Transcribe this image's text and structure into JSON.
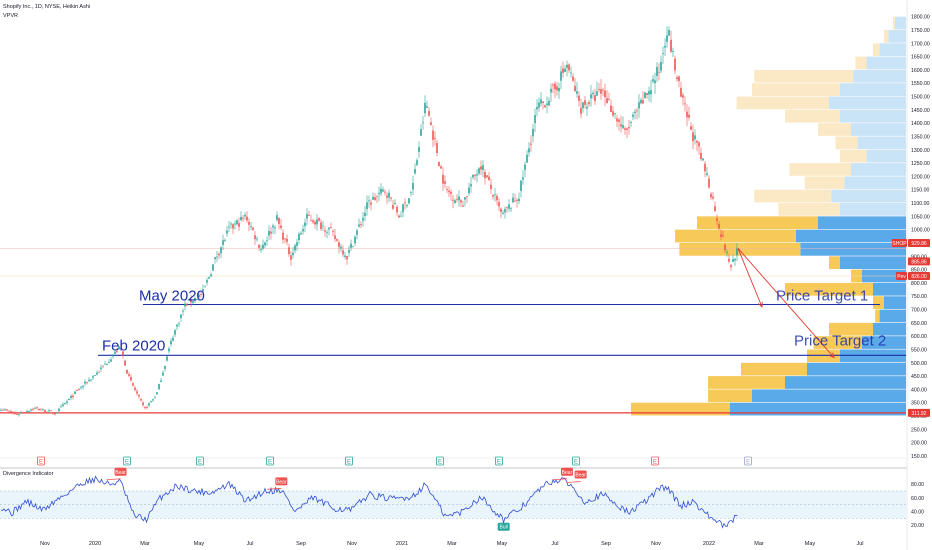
{
  "header": {
    "title": "Shopify Inc., 1D, NYSE, Heikin Ashi",
    "indicator": "VPVR"
  },
  "rsi_panel": {
    "name": "Divergence Indicator"
  },
  "colors": {
    "up": "#26a69a",
    "down": "#ef5350",
    "trendline": "#1c2fa8",
    "support": "#e53935",
    "vp_up": "#5aa9e8",
    "vp_down": "#f6c959",
    "vp_up_light": "#c9e3f7",
    "vp_down_light": "#fbe9c6",
    "rsi": "#2f4fd0",
    "rsi_band": "#dcecf8"
  },
  "chart_data": [
    {
      "type": "candlestick",
      "title": "Shopify Inc., 1D, NYSE, Heikin Ashi",
      "x_axis": {
        "type": "date",
        "ticks": [
          "Nov",
          "2020",
          "Mar",
          "May",
          "Jul",
          "Sep",
          "Nov",
          "2021",
          "Mar",
          "May",
          "Jul",
          "Sep",
          "Nov",
          "2022",
          "Mar",
          "May",
          "Jul"
        ]
      },
      "y_axis": {
        "position": "right",
        "ticks": [
          150.0,
          200.0,
          250.0,
          300.0,
          350.0,
          400.0,
          450.0,
          500.0,
          550.0,
          600.0,
          650.0,
          700.0,
          750.0,
          800.0,
          850.0,
          900.0,
          950.0,
          1000.0,
          1050.0,
          1100.0,
          1150.0,
          1200.0,
          1250.0,
          1300.0,
          1350.0,
          1400.0,
          1450.0,
          1500.0,
          1550.0,
          1600.0,
          1650.0,
          1700.0,
          1750.0,
          1800.0
        ],
        "ylim": [
          150,
          1810
        ]
      },
      "price_path": [
        {
          "date": "2019-10-01",
          "close": 330
        },
        {
          "date": "2019-10-20",
          "close": 305
        },
        {
          "date": "2019-11-10",
          "close": 330
        },
        {
          "date": "2019-12-05",
          "close": 310
        },
        {
          "date": "2020-01-01",
          "close": 400
        },
        {
          "date": "2020-01-25",
          "close": 470
        },
        {
          "date": "2020-02-19",
          "close": 560
        },
        {
          "date": "2020-02-28",
          "close": 450
        },
        {
          "date": "2020-03-18",
          "close": 325
        },
        {
          "date": "2020-04-01",
          "close": 380
        },
        {
          "date": "2020-04-20",
          "close": 600
        },
        {
          "date": "2020-05-05",
          "close": 720
        },
        {
          "date": "2020-05-25",
          "close": 760
        },
        {
          "date": "2020-06-10",
          "close": 900
        },
        {
          "date": "2020-06-25",
          "close": 1000
        },
        {
          "date": "2020-07-15",
          "close": 1050
        },
        {
          "date": "2020-08-01",
          "close": 930
        },
        {
          "date": "2020-08-20",
          "close": 1040
        },
        {
          "date": "2020-09-05",
          "close": 900
        },
        {
          "date": "2020-09-25",
          "close": 1050
        },
        {
          "date": "2020-10-20",
          "close": 1000
        },
        {
          "date": "2020-11-10",
          "close": 900
        },
        {
          "date": "2020-12-05",
          "close": 1100
        },
        {
          "date": "2020-12-25",
          "close": 1150
        },
        {
          "date": "2021-01-10",
          "close": 1050
        },
        {
          "date": "2021-01-25",
          "close": 1150
        },
        {
          "date": "2021-02-10",
          "close": 1480
        },
        {
          "date": "2021-03-05",
          "close": 1150
        },
        {
          "date": "2021-03-25",
          "close": 1100
        },
        {
          "date": "2021-04-15",
          "close": 1250
        },
        {
          "date": "2021-05-10",
          "close": 1050
        },
        {
          "date": "2021-05-30",
          "close": 1130
        },
        {
          "date": "2021-06-20",
          "close": 1450
        },
        {
          "date": "2021-07-10",
          "close": 1520
        },
        {
          "date": "2021-07-25",
          "close": 1620
        },
        {
          "date": "2021-08-10",
          "close": 1460
        },
        {
          "date": "2021-09-05",
          "close": 1520
        },
        {
          "date": "2021-10-01",
          "close": 1360
        },
        {
          "date": "2021-10-25",
          "close": 1500
        },
        {
          "date": "2021-11-10",
          "close": 1600
        },
        {
          "date": "2021-11-19",
          "close": 1762
        },
        {
          "date": "2021-12-05",
          "close": 1500
        },
        {
          "date": "2021-12-20",
          "close": 1350
        },
        {
          "date": "2022-01-05",
          "close": 1200
        },
        {
          "date": "2022-01-20",
          "close": 1000
        },
        {
          "date": "2022-02-01",
          "close": 860
        },
        {
          "date": "2022-02-10",
          "close": 929.86
        }
      ],
      "price_labels": [
        {
          "text": "SHOP",
          "value": 929.86
        },
        {
          "text": "929.86",
          "value": 929.86
        },
        {
          "text": "885.86",
          "value": 885.86
        },
        {
          "text": "Pev",
          "value": 826.0
        },
        {
          "text": "826.00",
          "value": 826.0
        },
        {
          "text": "311.92",
          "value": 311.92
        }
      ],
      "horizontal_lines": [
        {
          "name": "May 2020",
          "value": 719,
          "color": "#1c2fa8"
        },
        {
          "name": "Feb 2020",
          "value": 528,
          "color": "#1c2fa8"
        },
        {
          "name": "support",
          "value": 311.92,
          "color": "#e53935"
        }
      ],
      "annotations": [
        "May 2020",
        "Feb 2020",
        "Price Target 1",
        "Price Target 2"
      ],
      "targets": [
        {
          "text": "Price Target 1",
          "value": 719
        },
        {
          "text": "Price Target 2",
          "value": 528
        }
      ],
      "events": [
        "E",
        "E",
        "E",
        "E",
        "E",
        "E",
        "E",
        "E",
        "E",
        "E"
      ],
      "volume_profile": [
        {
          "value": 1775,
          "up": 0.05,
          "down": 0.01
        },
        {
          "value": 1725,
          "up": 0.08,
          "down": 0.02
        },
        {
          "value": 1675,
          "up": 0.12,
          "down": 0.03
        },
        {
          "value": 1625,
          "up": 0.18,
          "down": 0.05
        },
        {
          "value": 1575,
          "up": 0.24,
          "down": 0.45
        },
        {
          "value": 1525,
          "up": 0.3,
          "down": 0.4
        },
        {
          "value": 1475,
          "up": 0.35,
          "down": 0.42
        },
        {
          "value": 1425,
          "up": 0.3,
          "down": 0.25
        },
        {
          "value": 1375,
          "up": 0.25,
          "down": 0.15
        },
        {
          "value": 1325,
          "up": 0.22,
          "down": 0.1
        },
        {
          "value": 1275,
          "up": 0.18,
          "down": 0.12
        },
        {
          "value": 1225,
          "up": 0.25,
          "down": 0.28
        },
        {
          "value": 1175,
          "up": 0.28,
          "down": 0.18
        },
        {
          "value": 1125,
          "up": 0.34,
          "down": 0.35
        },
        {
          "value": 1075,
          "up": 0.3,
          "down": 0.28
        },
        {
          "value": 1025,
          "up": 0.4,
          "down": 0.55
        },
        {
          "value": 975,
          "up": 0.5,
          "down": 0.55
        },
        {
          "value": 925,
          "up": 0.48,
          "down": 0.55
        },
        {
          "value": 875,
          "up": 0.3,
          "down": 0.05
        },
        {
          "value": 825,
          "up": 0.2,
          "down": 0.05
        },
        {
          "value": 775,
          "up": 0.15,
          "down": 0.4
        },
        {
          "value": 725,
          "up": 0.1,
          "down": 0.05
        },
        {
          "value": 675,
          "up": 0.12,
          "down": 0.02
        },
        {
          "value": 625,
          "up": 0.15,
          "down": 0.2
        },
        {
          "value": 575,
          "up": 0.2,
          "down": 0.22
        },
        {
          "value": 525,
          "up": 0.3,
          "down": 0.15
        },
        {
          "value": 475,
          "up": 0.45,
          "down": 0.3
        },
        {
          "value": 425,
          "up": 0.55,
          "down": 0.35
        },
        {
          "value": 375,
          "up": 0.7,
          "down": 0.2
        },
        {
          "value": 325,
          "up": 0.8,
          "down": 0.45
        }
      ],
      "grid": false
    },
    {
      "type": "line",
      "title": "Divergence Indicator",
      "y_axis": {
        "position": "right",
        "ticks": [
          20.0,
          40.0,
          60.0,
          80.0
        ],
        "ylim": [
          10,
          95
        ]
      },
      "band": [
        30,
        70
      ],
      "rsi_path": [
        {
          "date": "2019-10-01",
          "value": 48
        },
        {
          "date": "2019-10-15",
          "value": 38
        },
        {
          "date": "2019-11-01",
          "value": 55
        },
        {
          "date": "2019-11-20",
          "value": 42
        },
        {
          "date": "2019-12-10",
          "value": 60
        },
        {
          "date": "2020-01-05",
          "value": 82
        },
        {
          "date": "2020-01-20",
          "value": 88
        },
        {
          "date": "2020-02-05",
          "value": 80
        },
        {
          "date": "2020-02-19",
          "value": 84
        },
        {
          "date": "2020-03-05",
          "value": 35
        },
        {
          "date": "2020-03-20",
          "value": 28
        },
        {
          "date": "2020-04-05",
          "value": 60
        },
        {
          "date": "2020-04-25",
          "value": 78
        },
        {
          "date": "2020-05-15",
          "value": 70
        },
        {
          "date": "2020-06-05",
          "value": 68
        },
        {
          "date": "2020-06-25",
          "value": 80
        },
        {
          "date": "2020-07-15",
          "value": 55
        },
        {
          "date": "2020-08-05",
          "value": 70
        },
        {
          "date": "2020-08-25",
          "value": 72
        },
        {
          "date": "2020-09-10",
          "value": 40
        },
        {
          "date": "2020-10-01",
          "value": 60
        },
        {
          "date": "2020-10-25",
          "value": 45
        },
        {
          "date": "2020-11-15",
          "value": 42
        },
        {
          "date": "2020-12-05",
          "value": 65
        },
        {
          "date": "2021-01-01",
          "value": 58
        },
        {
          "date": "2021-01-25",
          "value": 62
        },
        {
          "date": "2021-02-10",
          "value": 80
        },
        {
          "date": "2021-03-05",
          "value": 32
        },
        {
          "date": "2021-03-25",
          "value": 40
        },
        {
          "date": "2021-04-15",
          "value": 62
        },
        {
          "date": "2021-05-12",
          "value": 28
        },
        {
          "date": "2021-06-01",
          "value": 45
        },
        {
          "date": "2021-06-25",
          "value": 75
        },
        {
          "date": "2021-07-10",
          "value": 86
        },
        {
          "date": "2021-07-25",
          "value": 84
        },
        {
          "date": "2021-08-15",
          "value": 55
        },
        {
          "date": "2021-09-05",
          "value": 65
        },
        {
          "date": "2021-10-05",
          "value": 38
        },
        {
          "date": "2021-10-25",
          "value": 55
        },
        {
          "date": "2021-11-10",
          "value": 74
        },
        {
          "date": "2021-11-19",
          "value": 76
        },
        {
          "date": "2021-12-05",
          "value": 48
        },
        {
          "date": "2021-12-20",
          "value": 55
        },
        {
          "date": "2022-01-05",
          "value": 35
        },
        {
          "date": "2022-01-25",
          "value": 18
        },
        {
          "date": "2022-02-01",
          "value": 22
        },
        {
          "date": "2022-02-10",
          "value": 38
        }
      ],
      "signals": [
        {
          "text": "Bear",
          "date": "2020-02-19",
          "value": 88
        },
        {
          "text": "Bear",
          "date": "2020-08-25",
          "value": 74
        },
        {
          "text": "Bull",
          "date": "2021-05-12",
          "value": 28
        },
        {
          "text": "Bear",
          "date": "2021-07-25",
          "value": 88
        },
        {
          "text": "Bear",
          "date": "2021-08-10",
          "value": 84
        }
      ]
    }
  ]
}
